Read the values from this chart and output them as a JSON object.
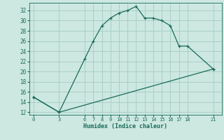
{
  "xlabel": "Humidex (Indice chaleur)",
  "ylabel": "",
  "bg_color": "#cce8e0",
  "grid_color": "#aacfc8",
  "line_color": "#1a6b5a",
  "ylim": [
    11.5,
    33.5
  ],
  "xlim": [
    -0.5,
    22
  ],
  "yticks": [
    12,
    14,
    16,
    18,
    20,
    22,
    24,
    26,
    28,
    30,
    32
  ],
  "xticks": [
    0,
    3,
    6,
    7,
    8,
    9,
    10,
    11,
    12,
    13,
    14,
    15,
    16,
    17,
    18,
    21
  ],
  "curve1_x": [
    0,
    3,
    6,
    7,
    8,
    9,
    10,
    11,
    12,
    13,
    14,
    15,
    16,
    17,
    18,
    21
  ],
  "curve1_y": [
    15,
    12,
    22.5,
    26,
    29,
    30.5,
    31.5,
    32,
    32.8,
    30.5,
    30.5,
    30,
    29,
    25,
    25,
    20.5
  ],
  "curve2_x": [
    0,
    3,
    21
  ],
  "curve2_y": [
    15,
    12,
    20.5
  ]
}
